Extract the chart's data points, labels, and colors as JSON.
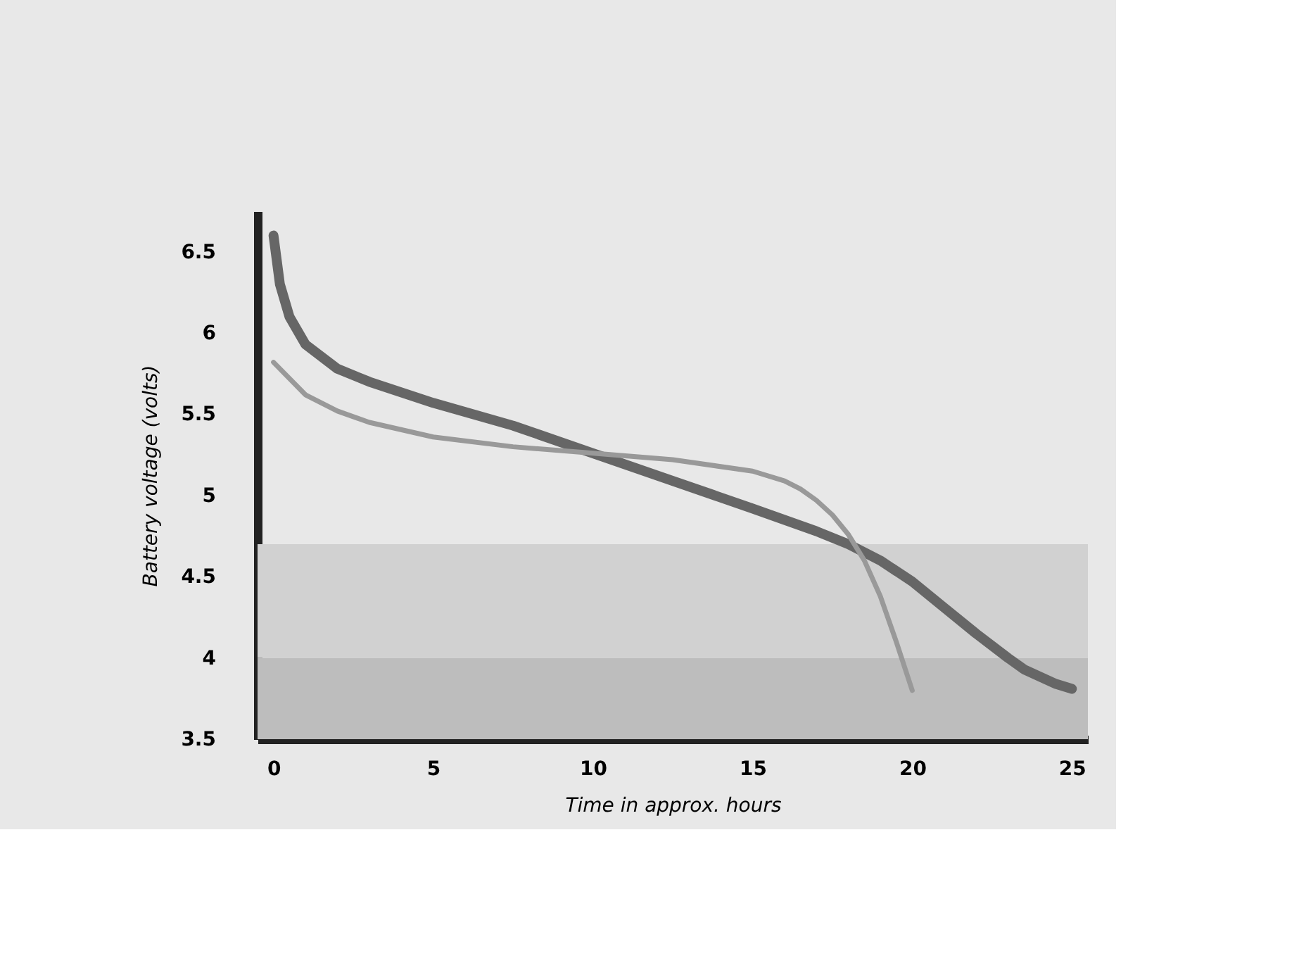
{
  "chart_data": {
    "type": "line",
    "xlabel": "Time in approx. hours",
    "ylabel": "Battery voltage (volts)",
    "xlim": [
      -0.5,
      25.5
    ],
    "xticks": [
      0,
      5,
      10,
      15,
      20,
      25
    ],
    "ylim": [
      3.5,
      6.75
    ],
    "yticks": [
      3.5,
      4,
      4.5,
      5,
      5.5,
      6,
      6.5
    ],
    "grid": false,
    "line_style": "solid",
    "marker": "none",
    "bands": [
      {
        "axis": "y",
        "from": 3.5,
        "to": 4.0,
        "color": "#bdbdbd"
      },
      {
        "axis": "y",
        "from": 4.0,
        "to": 4.7,
        "color": "#d1d1d1"
      }
    ],
    "series": [
      {
        "color": "#666666",
        "x": [
          0,
          0.2,
          0.5,
          1,
          2,
          3,
          5,
          7.5,
          10,
          12.5,
          15,
          17,
          18,
          19,
          20,
          21,
          22,
          23,
          23.5,
          24.5,
          25
        ],
        "values": [
          6.6,
          6.3,
          6.1,
          5.93,
          5.78,
          5.7,
          5.57,
          5.43,
          5.26,
          5.09,
          4.92,
          4.78,
          4.7,
          4.6,
          4.47,
          4.31,
          4.15,
          4.0,
          3.93,
          3.84,
          3.81
        ]
      },
      {
        "color": "#999999",
        "x": [
          0,
          1,
          2,
          3,
          5,
          7.5,
          10,
          12.5,
          15,
          16,
          16.5,
          17,
          17.5,
          18,
          18.5,
          19,
          19.5,
          20
        ],
        "values": [
          5.82,
          5.62,
          5.52,
          5.45,
          5.36,
          5.3,
          5.26,
          5.22,
          5.15,
          5.09,
          5.04,
          4.97,
          4.88,
          4.76,
          4.6,
          4.38,
          4.1,
          3.8
        ]
      }
    ]
  }
}
